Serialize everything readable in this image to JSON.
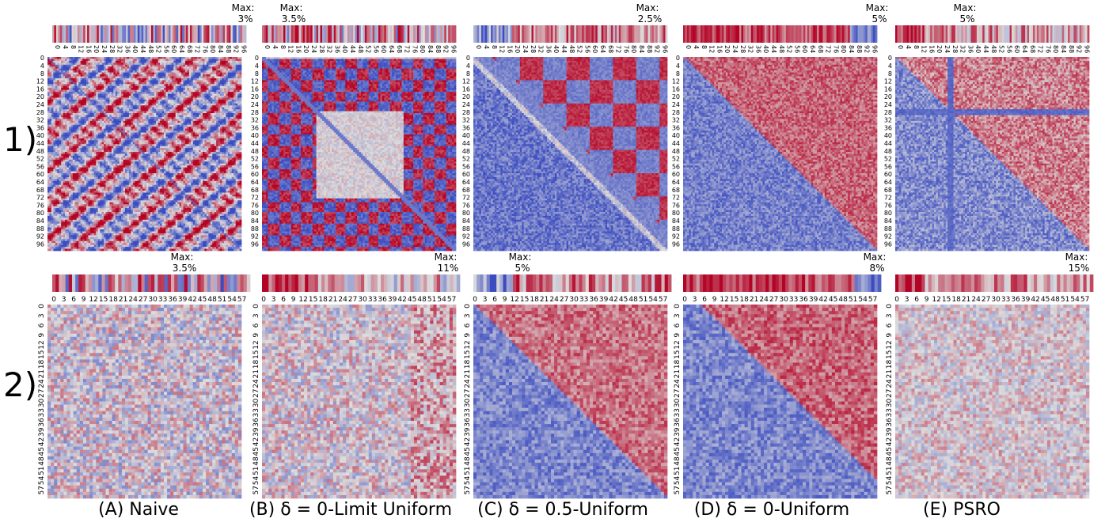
{
  "row_labels": [
    "1)",
    "2)"
  ],
  "column_captions": [
    "(A) Naive",
    "(B) δ = 0-Limit Uniform",
    "(C) δ = 0.5-Uniform",
    "(D) δ = 0-Uniform",
    "(E) PSRO"
  ],
  "max_label": "Max:",
  "colormap": {
    "low": "#3b4cc0",
    "mid": "#dddddd",
    "high": "#b40426"
  },
  "chart_data": [
    {
      "type": "heatmap",
      "row": "1)",
      "panel": "(A) Naive",
      "size": 100,
      "tick_step": 4,
      "max_value": "3%",
      "pattern": "naive"
    },
    {
      "type": "heatmap",
      "row": "1)",
      "panel": "(B) δ = 0-Limit Uniform",
      "size": 100,
      "tick_step": 4,
      "max_value": "3.5%",
      "pattern": "limit"
    },
    {
      "type": "heatmap",
      "row": "1)",
      "panel": "(C) δ = 0.5-Uniform",
      "size": 100,
      "tick_step": 4,
      "max_value": "2.5%",
      "pattern": "half"
    },
    {
      "type": "heatmap",
      "row": "1)",
      "panel": "(D) δ = 0-Uniform",
      "size": 100,
      "tick_step": 4,
      "max_value": "5%",
      "pattern": "zero"
    },
    {
      "type": "heatmap",
      "row": "1)",
      "panel": "(E) PSRO",
      "size": 100,
      "tick_step": 4,
      "max_value": "5%",
      "pattern": "psro"
    },
    {
      "type": "heatmap",
      "row": "2)",
      "panel": "(A) Naive",
      "size": 60,
      "tick_step": 3,
      "max_value": "3.5%",
      "pattern": "naive2"
    },
    {
      "type": "heatmap",
      "row": "2)",
      "panel": "(B) δ = 0-Limit Uniform",
      "size": 60,
      "tick_step": 3,
      "max_value": "11%",
      "pattern": "limit2"
    },
    {
      "type": "heatmap",
      "row": "2)",
      "panel": "(C) δ = 0.5-Uniform",
      "size": 60,
      "tick_step": 3,
      "max_value": "5%",
      "pattern": "half2"
    },
    {
      "type": "heatmap",
      "row": "2)",
      "panel": "(D) δ = 0-Uniform",
      "size": 60,
      "tick_step": 3,
      "max_value": "8%",
      "pattern": "zero2"
    },
    {
      "type": "heatmap",
      "row": "2)",
      "panel": "(E) PSRO",
      "size": 60,
      "tick_step": 3,
      "max_value": "15%",
      "pattern": "psro2"
    }
  ]
}
